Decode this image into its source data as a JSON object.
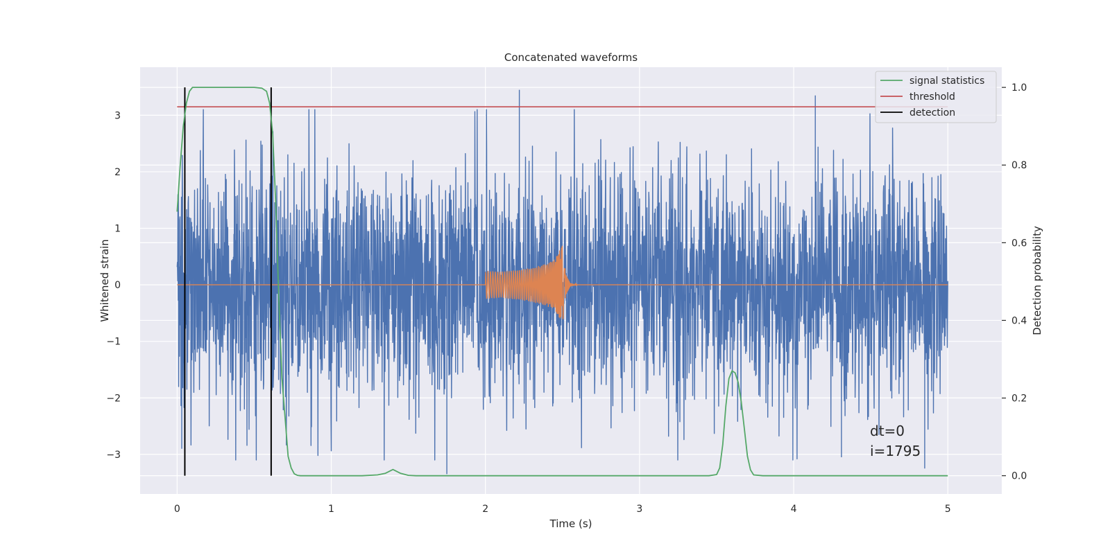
{
  "chart_data": {
    "type": "line",
    "title": "Concatenated waveforms",
    "xlabel": "Time (s)",
    "ylabel": "Whitened strain",
    "ylabel_right": "Detection probability",
    "xlim": [
      -0.24,
      5.35
    ],
    "ylim": [
      -3.7,
      3.85
    ],
    "ylim_right": [
      -0.047,
      1.052
    ],
    "x_ticks": [
      0,
      1,
      2,
      3,
      4,
      5
    ],
    "x_tick_labels": [
      "0",
      "1",
      "2",
      "3",
      "4",
      "5"
    ],
    "y_ticks": [
      -3,
      -2,
      -1,
      0,
      1,
      2,
      3
    ],
    "y_tick_labels": [
      "−3",
      "−2",
      "−1",
      "0",
      "1",
      "2",
      "3"
    ],
    "y_right_ticks": [
      0.0,
      0.2,
      0.4,
      0.6,
      0.8,
      1.0
    ],
    "y_right_tick_labels": [
      "0.0",
      "0.2",
      "0.4",
      "0.6",
      "0.8",
      "1.0"
    ],
    "grid": true,
    "legend_position": "top-right",
    "noise": {
      "x_range": [
        0,
        5
      ],
      "approx_peak_abs": 3.5,
      "notable_spikes": [
        [
          0.03,
          -2.9
        ],
        [
          2.22,
          3.45
        ],
        [
          1.75,
          -3.35
        ],
        [
          4.14,
          3.35
        ],
        [
          4.31,
          -3.05
        ],
        [
          4.85,
          -3.25
        ]
      ]
    },
    "injected_signal": {
      "x": [
        2.0,
        2.1,
        2.2,
        2.3,
        2.4,
        2.45,
        2.5,
        2.51,
        2.52,
        2.55,
        2.6,
        5.0
      ],
      "amplitude": [
        0.25,
        0.23,
        0.26,
        0.3,
        0.38,
        0.45,
        0.7,
        0.55,
        0.2,
        0.03,
        0.0,
        0.0
      ]
    },
    "series": [
      {
        "name": "signal statistics",
        "color": "#55a868",
        "axis": "right",
        "x": [
          0,
          0.02,
          0.04,
          0.06,
          0.08,
          0.1,
          0.12,
          0.15,
          0.2,
          0.3,
          0.4,
          0.5,
          0.55,
          0.58,
          0.6,
          0.62,
          0.64,
          0.66,
          0.68,
          0.7,
          0.72,
          0.74,
          0.76,
          0.78,
          0.8,
          0.9,
          1.0,
          1.2,
          1.3,
          1.35,
          1.4,
          1.45,
          1.5,
          1.55,
          1.6,
          2.0,
          3.0,
          3.45,
          3.5,
          3.52,
          3.54,
          3.56,
          3.58,
          3.6,
          3.62,
          3.64,
          3.66,
          3.68,
          3.7,
          3.72,
          3.74,
          3.8,
          4.0,
          4.5,
          5.0
        ],
        "y": [
          0.68,
          0.8,
          0.9,
          0.96,
          0.99,
          1.0,
          1.0,
          1.0,
          1.0,
          1.0,
          1.0,
          1.0,
          0.998,
          0.99,
          0.96,
          0.88,
          0.7,
          0.45,
          0.25,
          0.15,
          0.05,
          0.02,
          0.005,
          0.001,
          0.0,
          0.0,
          0.0,
          0.0,
          0.002,
          0.006,
          0.016,
          0.006,
          0.001,
          0.0,
          0.0,
          0.0,
          0.0,
          0.0,
          0.003,
          0.02,
          0.08,
          0.18,
          0.25,
          0.27,
          0.265,
          0.24,
          0.19,
          0.12,
          0.05,
          0.015,
          0.002,
          0.0,
          0.0,
          0.0,
          0.0
        ]
      },
      {
        "name": "threshold",
        "color": "#c44e52",
        "axis": "right",
        "x": [
          0,
          5
        ],
        "y": [
          0.95,
          0.95
        ]
      },
      {
        "name": "detection",
        "color": "#000000",
        "axis": "right",
        "vlines": [
          0.05,
          0.61
        ],
        "y_span": [
          0.0,
          1.0
        ]
      }
    ],
    "noise_color": "#4c72b0",
    "signal_color": "#dd8452",
    "annotations": [
      "dt=0",
      "i=1795"
    ]
  }
}
